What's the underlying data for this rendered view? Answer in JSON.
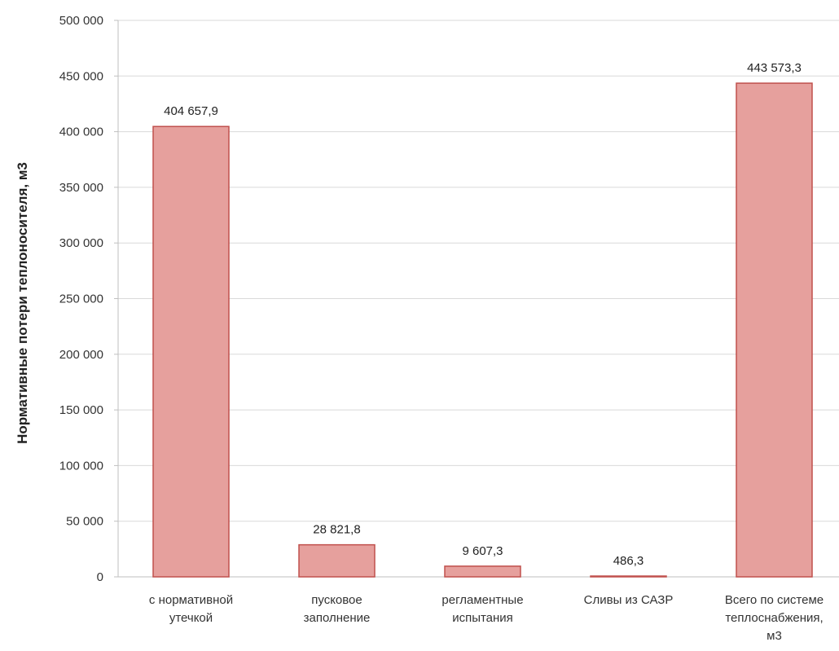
{
  "chart_data": {
    "type": "bar",
    "ylabel": "Нормативные потери теплоносителя, м3",
    "ylim": [
      0,
      500000
    ],
    "yticks": [
      0,
      50000,
      100000,
      150000,
      200000,
      250000,
      300000,
      350000,
      400000,
      450000,
      500000
    ],
    "ytick_labels": [
      "0",
      "50 000",
      "100 000",
      "150 000",
      "200 000",
      "250 000",
      "300 000",
      "350 000",
      "400 000",
      "450 000",
      "500 000"
    ],
    "grid": true,
    "legend": "none",
    "categories": [
      [
        "с нормативной",
        "утечкой"
      ],
      [
        "пусковое",
        "заполнение"
      ],
      [
        "регламентные",
        "испытания"
      ],
      [
        "Сливы из САЗР"
      ],
      [
        "Всего по системе",
        "теплоснабжения,",
        "м3"
      ]
    ],
    "values": [
      404657.9,
      28821.8,
      9607.3,
      486.3,
      443573.3
    ],
    "data_labels": [
      "404 657,9",
      "28 821,8",
      "9 607,3",
      "486,3",
      "443 573,3"
    ],
    "colors": {
      "bar_fill": "#e6a09d",
      "bar_stroke": "#c0504d"
    }
  }
}
